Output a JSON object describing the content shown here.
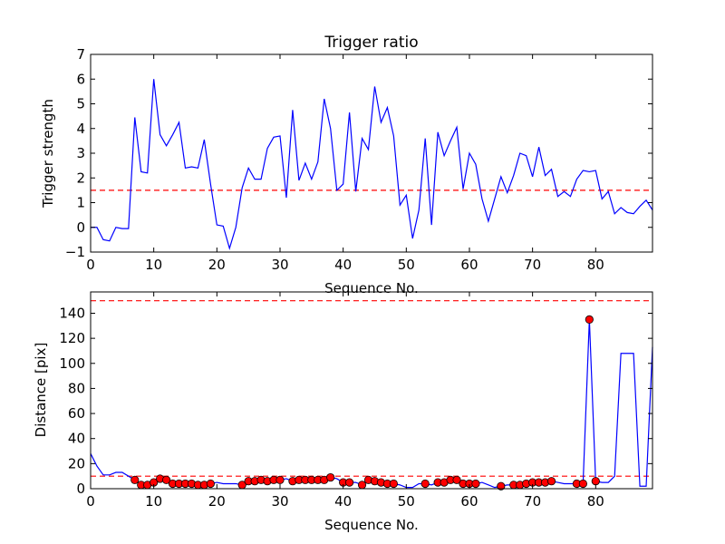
{
  "chart_data": [
    {
      "type": "line",
      "title": "Trigger ratio",
      "xlabel": "Sequence No.",
      "ylabel": "Trigger strength",
      "xlim": [
        0,
        89
      ],
      "ylim": [
        -1,
        7
      ],
      "xticks": [
        "0",
        "10",
        "20",
        "30",
        "40",
        "50",
        "60",
        "70",
        "80"
      ],
      "yticks": [
        "−1",
        "0",
        "1",
        "2",
        "3",
        "4",
        "5",
        "6",
        "7"
      ],
      "xtick_values": [
        0,
        10,
        20,
        30,
        40,
        50,
        60,
        70,
        80
      ],
      "ytick_values": [
        -1,
        0,
        1,
        2,
        3,
        4,
        5,
        6,
        7
      ],
      "threshold": 1.5,
      "colors": {
        "line": "#0000ff",
        "threshold": "#ff0000"
      },
      "x": [
        0,
        1,
        2,
        3,
        4,
        5,
        6,
        7,
        8,
        9,
        10,
        11,
        12,
        13,
        14,
        15,
        16,
        17,
        18,
        19,
        20,
        21,
        22,
        23,
        24,
        25,
        26,
        27,
        28,
        29,
        30,
        31,
        32,
        33,
        34,
        35,
        36,
        37,
        38,
        39,
        40,
        41,
        42,
        43,
        44,
        45,
        46,
        47,
        48,
        49,
        50,
        51,
        52,
        53,
        54,
        55,
        56,
        57,
        58,
        59,
        60,
        61,
        62,
        63,
        64,
        65,
        66,
        67,
        68,
        69,
        70,
        71,
        72,
        73,
        74,
        75,
        76,
        77,
        78,
        79,
        80,
        81,
        82,
        83,
        84,
        85,
        86,
        87,
        88,
        89
      ],
      "series": [
        {
          "values": [
            0.0,
            0.0,
            -0.5,
            -0.55,
            0.0,
            -0.05,
            -0.05,
            4.45,
            2.25,
            2.2,
            6.0,
            3.75,
            3.3,
            3.75,
            4.25,
            2.4,
            2.45,
            2.4,
            3.55,
            1.75,
            0.1,
            0.05,
            -0.85,
            0.0,
            1.6,
            2.4,
            1.95,
            1.95,
            3.2,
            3.65,
            3.7,
            1.2,
            4.75,
            1.9,
            2.6,
            1.95,
            2.65,
            5.2,
            4.0,
            1.5,
            1.75,
            4.65,
            1.45,
            3.6,
            3.15,
            5.7,
            4.25,
            4.85,
            3.7,
            0.9,
            1.3,
            -0.45,
            0.7,
            3.6,
            0.1,
            3.85,
            2.9,
            3.5,
            4.05,
            1.55,
            3.0,
            2.55,
            1.15,
            0.25,
            1.15,
            2.05,
            1.4,
            2.1,
            3.0,
            2.9,
            2.05,
            3.25,
            2.1,
            2.35,
            1.25,
            1.45,
            1.25,
            1.95,
            2.3,
            2.25,
            2.3,
            1.15,
            1.45,
            0.55,
            0.8,
            0.6,
            0.55,
            0.85,
            1.1,
            0.7
          ]
        }
      ]
    },
    {
      "type": "line",
      "title": "",
      "xlabel": "Sequence No.",
      "ylabel": "Distance [pix]",
      "xlim": [
        0,
        89
      ],
      "ylim": [
        0,
        157
      ],
      "xticks": [
        "0",
        "10",
        "20",
        "30",
        "40",
        "50",
        "60",
        "70",
        "80"
      ],
      "yticks": [
        "0",
        "20",
        "40",
        "60",
        "80",
        "100",
        "120",
        "140"
      ],
      "xtick_values": [
        0,
        10,
        20,
        30,
        40,
        50,
        60,
        70,
        80
      ],
      "ytick_values": [
        0,
        20,
        40,
        60,
        80,
        100,
        120,
        140
      ],
      "thresholds": [
        150,
        10
      ],
      "colors": {
        "line": "#0000ff",
        "threshold": "#ff0000",
        "marker": "#ff0000"
      },
      "x": [
        0,
        1,
        2,
        3,
        4,
        5,
        6,
        7,
        8,
        9,
        10,
        11,
        12,
        13,
        14,
        15,
        16,
        17,
        18,
        19,
        20,
        21,
        22,
        23,
        24,
        25,
        26,
        27,
        28,
        29,
        30,
        31,
        32,
        33,
        34,
        35,
        36,
        37,
        38,
        39,
        40,
        41,
        42,
        43,
        44,
        45,
        46,
        47,
        48,
        49,
        50,
        51,
        52,
        53,
        54,
        55,
        56,
        57,
        58,
        59,
        60,
        61,
        62,
        63,
        64,
        65,
        66,
        67,
        68,
        69,
        70,
        71,
        72,
        73,
        74,
        75,
        76,
        77,
        78,
        79,
        80,
        81,
        82,
        83,
        84,
        85,
        86,
        87,
        88,
        89
      ],
      "series": [
        {
          "values": [
            28,
            18,
            11,
            11,
            13,
            13,
            10,
            7,
            3,
            3,
            5,
            8,
            7,
            4,
            4,
            4,
            4,
            3,
            3,
            4,
            5,
            4,
            4,
            4,
            3,
            6,
            6,
            7,
            6,
            7,
            7,
            8,
            6,
            7,
            7,
            7,
            7,
            7,
            9,
            8,
            5,
            5,
            5,
            3,
            7,
            6,
            5,
            4,
            4,
            3,
            1,
            1,
            4,
            4,
            3,
            5,
            5,
            7,
            7,
            4,
            4,
            4,
            5,
            3,
            1,
            2,
            3,
            3,
            4,
            5,
            5,
            5,
            5,
            6,
            5,
            4,
            4,
            4,
            4,
            135,
            6,
            5,
            5,
            10,
            108,
            108,
            108,
            2,
            2,
            113
          ]
        },
        {
          "name": "",
          "marker_x": [
            7,
            8,
            9,
            10,
            11,
            12,
            13,
            14,
            15,
            16,
            17,
            18,
            19,
            24,
            25,
            26,
            27,
            28,
            29,
            30,
            32,
            33,
            34,
            35,
            36,
            37,
            38,
            40,
            41,
            43,
            44,
            45,
            46,
            47,
            48,
            53,
            55,
            56,
            57,
            58,
            59,
            60,
            61,
            65,
            67,
            68,
            69,
            70,
            71,
            72,
            73,
            77,
            78,
            79,
            80
          ],
          "marker_y": [
            7,
            3,
            3,
            5,
            8,
            7,
            4,
            4,
            4,
            4,
            3,
            3,
            4,
            3,
            6,
            6,
            7,
            6,
            7,
            7,
            6,
            7,
            7,
            7,
            7,
            7,
            9,
            5,
            5,
            3,
            7,
            6,
            5,
            4,
            4,
            4,
            5,
            5,
            7,
            7,
            4,
            4,
            4,
            2,
            3,
            3,
            4,
            5,
            5,
            5,
            6,
            4,
            4,
            135,
            6
          ]
        }
      ]
    }
  ]
}
